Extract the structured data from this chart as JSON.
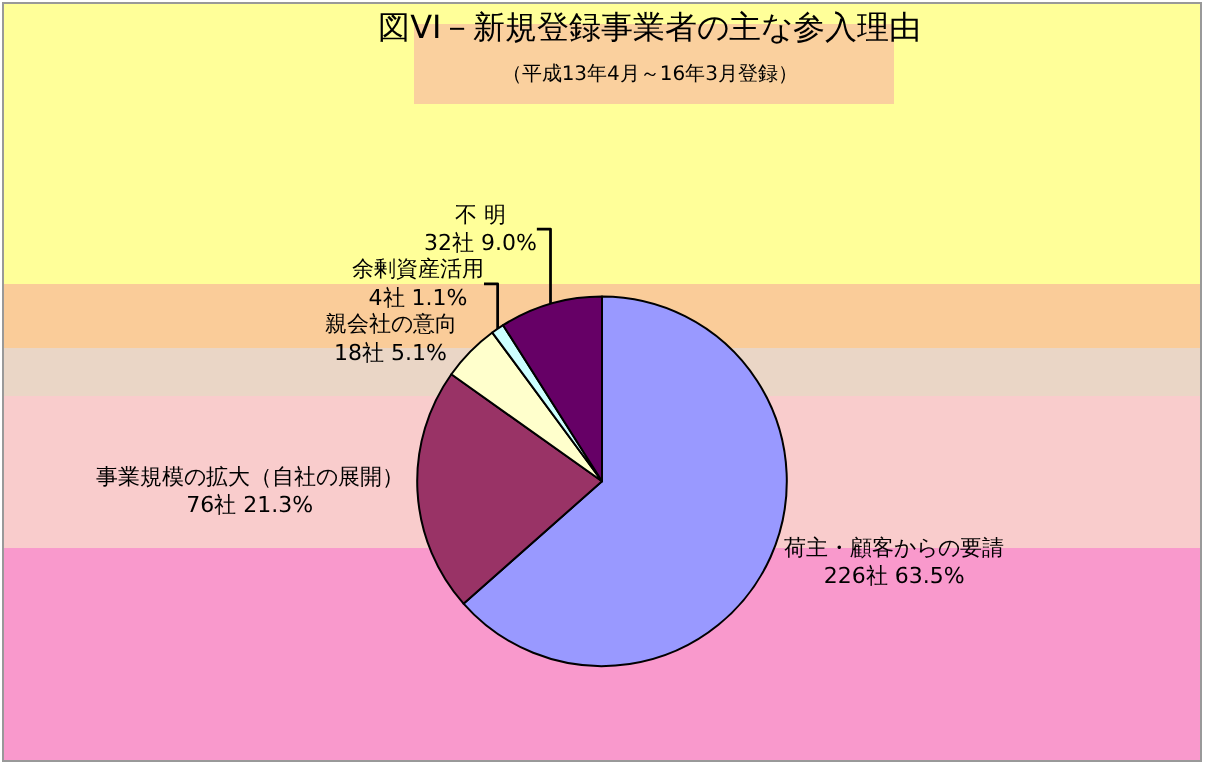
{
  "chart_data": {
    "type": "pie",
    "title": "図VI－新規登録事業者の主な参入理由",
    "subtitle": "（平成13年4月～16年3月登録）",
    "categories": [
      "荷主・顧客からの要請",
      "事業規模の拡大（自社の展開）",
      "親会社の意向",
      "余剰資産活用",
      "不 明"
    ],
    "values": [
      226,
      76,
      18,
      4,
      32
    ],
    "value_labels": [
      "226社 63.5%",
      "76社 21.3%",
      "18社 5.1%",
      "4社 1.1%",
      "32社 9.0%"
    ],
    "colors": [
      "#9999ff",
      "#993366",
      "#ffffcc",
      "#ccffff",
      "#660066"
    ],
    "legend": false
  }
}
